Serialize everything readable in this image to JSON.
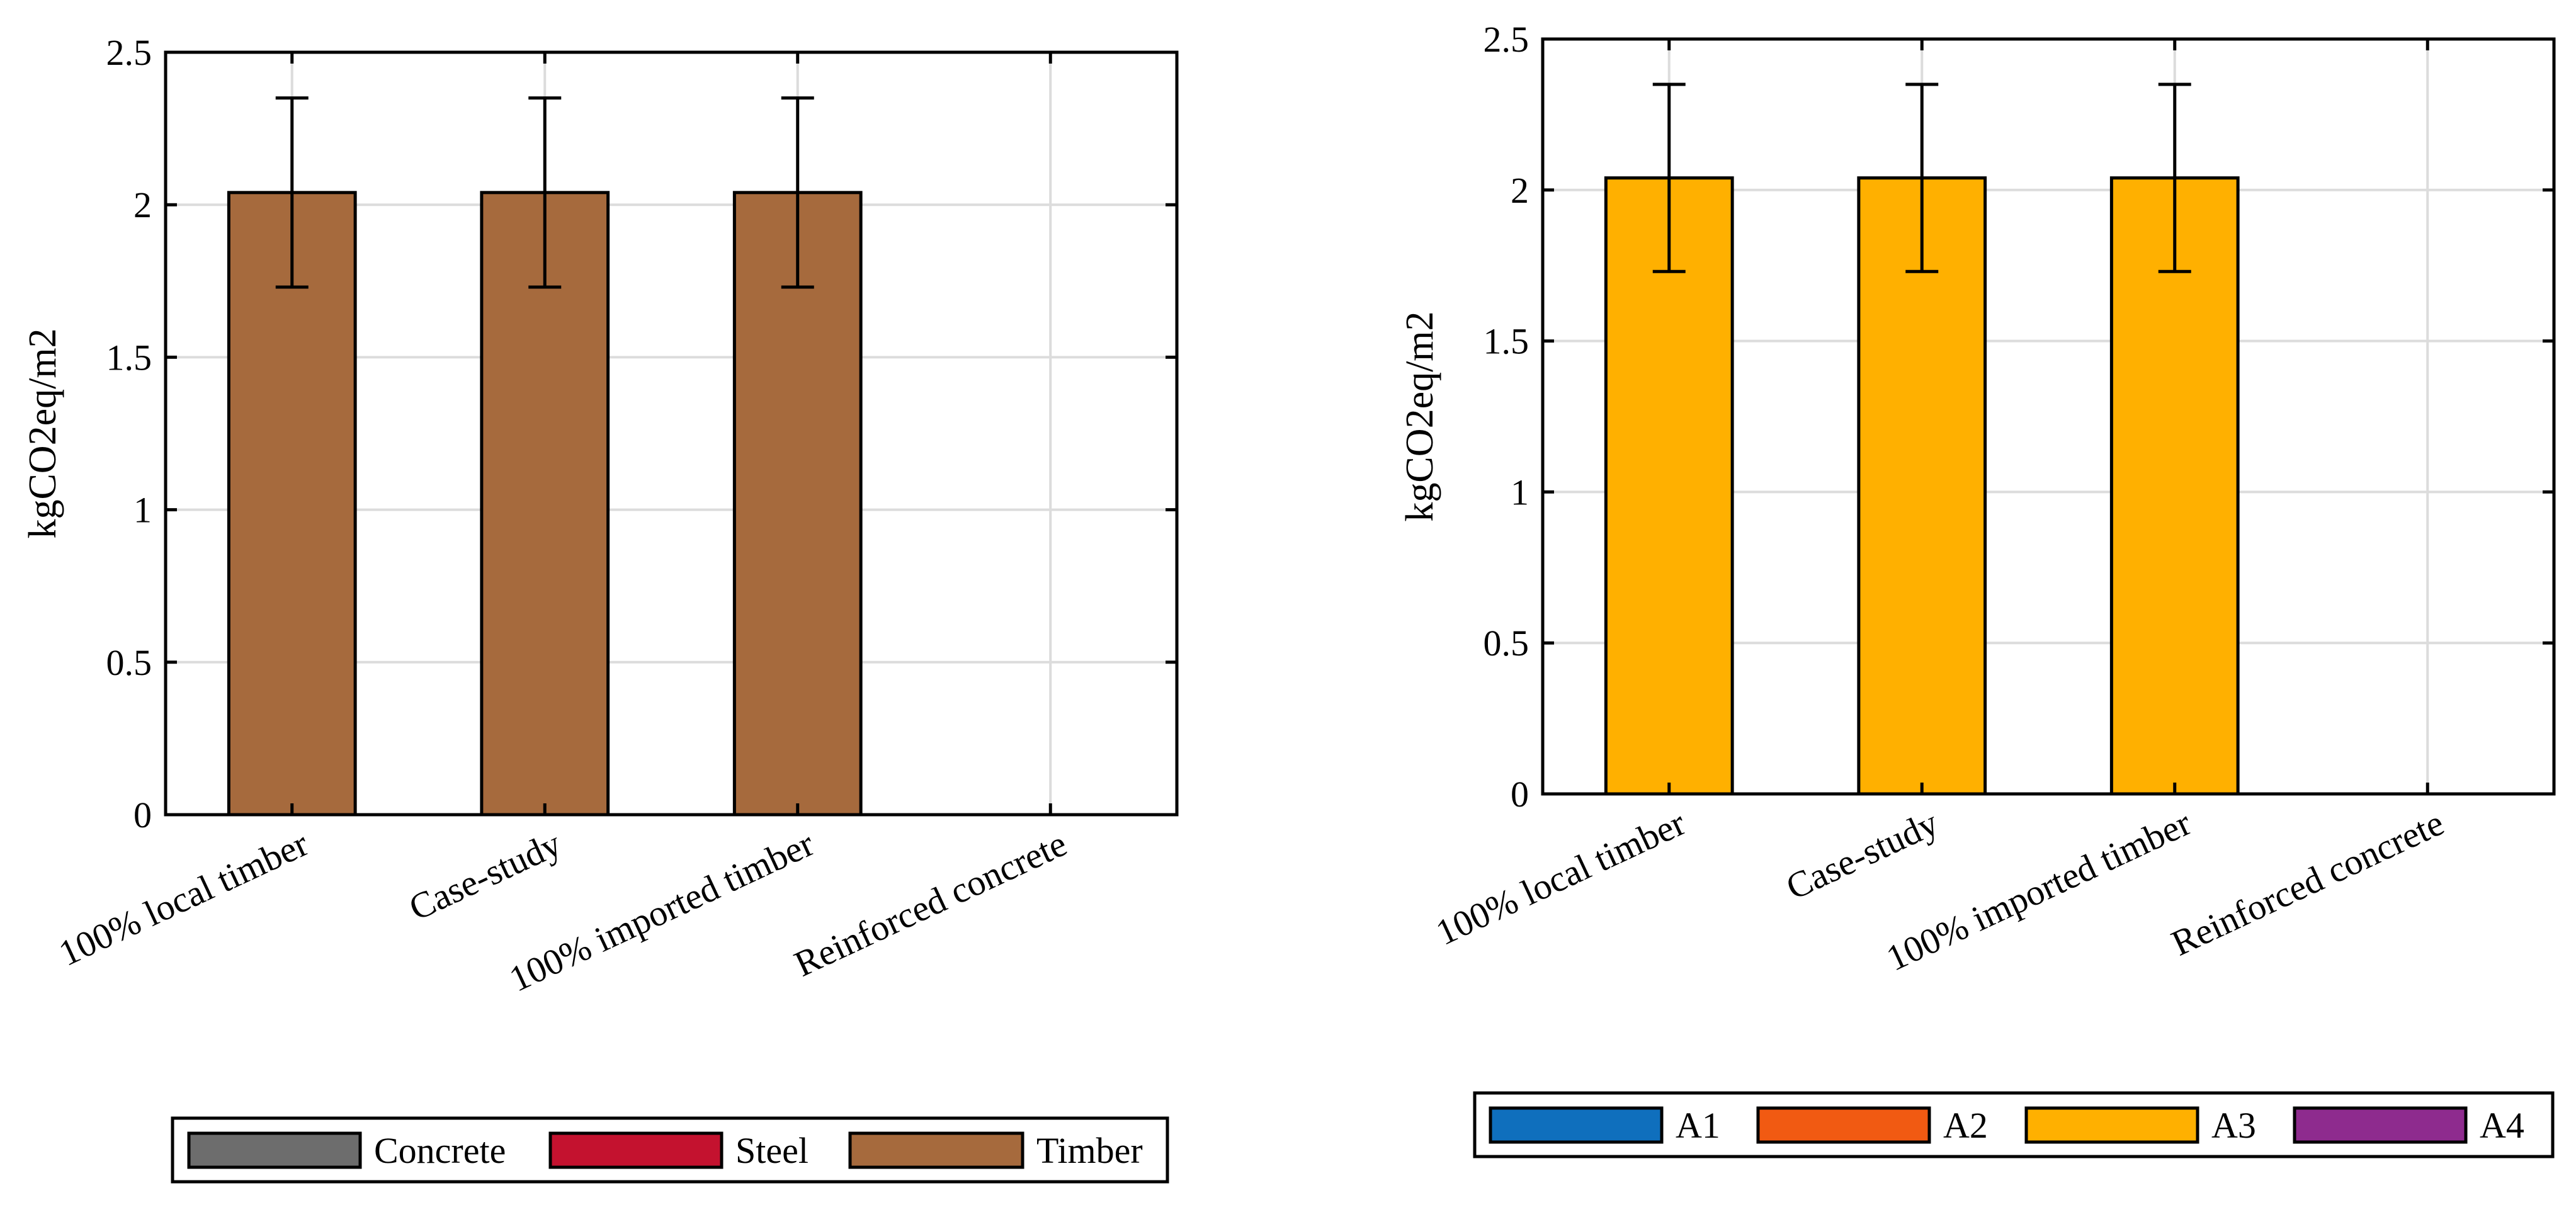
{
  "chart_data": [
    {
      "type": "bar",
      "stacked": true,
      "categories": [
        "100% local timber",
        "Case-study",
        "100% imported timber",
        "Reinforced concrete"
      ],
      "series": [
        {
          "name": "Concrete",
          "color": "#6d6d6d",
          "values": [
            0,
            0,
            0,
            0
          ]
        },
        {
          "name": "Steel",
          "color": "#c4122f",
          "values": [
            0,
            0,
            0,
            0
          ]
        },
        {
          "name": "Timber",
          "color": "#a66a3d",
          "values": [
            2.04,
            2.04,
            2.04,
            0
          ]
        }
      ],
      "error_bars": [
        {
          "low": 1.73,
          "high": 2.35
        },
        {
          "low": 1.73,
          "high": 2.35
        },
        {
          "low": 1.73,
          "high": 2.35
        },
        null
      ],
      "title": "",
      "xlabel": "",
      "ylabel": "kgCO2eq/m2",
      "ylim": [
        0,
        2.5
      ],
      "yticks": [
        0,
        0.5,
        1,
        1.5,
        2,
        2.5
      ],
      "ytick_labels": [
        "0",
        "0.5",
        "1",
        "1.5",
        "2",
        "2.5"
      ],
      "grid": true,
      "legend_position": "bottom"
    },
    {
      "type": "bar",
      "stacked": true,
      "categories": [
        "100% local timber",
        "Case-study",
        "100% imported timber",
        "Reinforced concrete"
      ],
      "series": [
        {
          "name": "A1",
          "color": "#0f6fbd",
          "values": [
            0,
            0,
            0,
            0
          ]
        },
        {
          "name": "A2",
          "color": "#f15a12",
          "values": [
            0,
            0,
            0,
            0
          ]
        },
        {
          "name": "A3",
          "color": "#ffb000",
          "values": [
            2.04,
            2.04,
            2.04,
            0
          ]
        },
        {
          "name": "A4",
          "color": "#8e2b8e",
          "values": [
            0,
            0,
            0,
            0
          ]
        }
      ],
      "error_bars": [
        {
          "low": 1.73,
          "high": 2.35
        },
        {
          "low": 1.73,
          "high": 2.35
        },
        {
          "low": 1.73,
          "high": 2.35
        },
        null
      ],
      "title": "",
      "xlabel": "",
      "ylabel": "kgCO2eq/m2",
      "ylim": [
        0,
        2.5
      ],
      "yticks": [
        0,
        0.5,
        1,
        1.5,
        2,
        2.5
      ],
      "ytick_labels": [
        "0",
        "0.5",
        "1",
        "1.5",
        "2",
        "2.5"
      ],
      "grid": true,
      "legend_position": "bottom"
    }
  ]
}
